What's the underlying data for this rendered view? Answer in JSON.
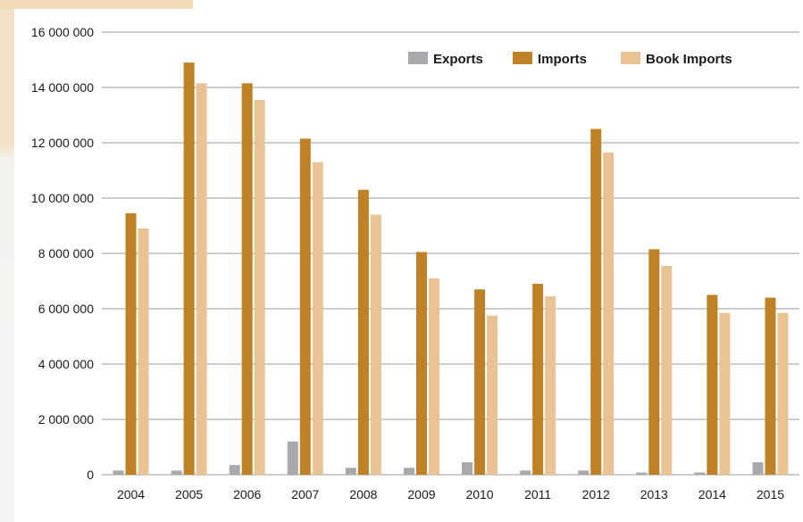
{
  "colors": {
    "exports": "#a7a9ac",
    "imports": "#bf8125",
    "book_imports": "#e9c394",
    "grid": "#9a9a9a",
    "background_accent": "#f2dcb8"
  },
  "chart_data": {
    "type": "bar",
    "title": "",
    "xlabel": "",
    "ylabel": "",
    "ylim": [
      0,
      16000000
    ],
    "yticks": [
      0,
      2000000,
      4000000,
      6000000,
      8000000,
      10000000,
      12000000,
      14000000,
      16000000
    ],
    "ytick_labels": [
      "0",
      "2 000 000",
      "4 000 000",
      "6 000 000",
      "8 000 000",
      "10 000 000",
      "12 000 000",
      "14 000 000",
      "16 000 000"
    ],
    "grid": "horizontal",
    "legend_position": "top-right",
    "categories": [
      "2004",
      "2005",
      "2006",
      "2007",
      "2008",
      "2009",
      "2010",
      "2011",
      "2012",
      "2013",
      "2014",
      "2015"
    ],
    "series": [
      {
        "name": "Exports",
        "color": "#a7a9ac",
        "values": [
          150000,
          150000,
          350000,
          1200000,
          250000,
          250000,
          450000,
          150000,
          150000,
          80000,
          80000,
          450000
        ]
      },
      {
        "name": "Imports",
        "color": "#bf8125",
        "values": [
          9450000,
          14900000,
          14150000,
          12150000,
          10300000,
          8050000,
          6700000,
          6900000,
          12500000,
          8150000,
          6500000,
          6400000
        ]
      },
      {
        "name": "Book Imports",
        "color": "#e9c394",
        "values": [
          8900000,
          14150000,
          13550000,
          11300000,
          9400000,
          7100000,
          5750000,
          6450000,
          11650000,
          7550000,
          5850000,
          5850000
        ]
      }
    ]
  }
}
